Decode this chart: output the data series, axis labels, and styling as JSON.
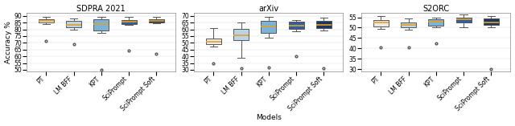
{
  "title_fontsize": 7,
  "label_fontsize": 6.5,
  "tick_fontsize": 5.5,
  "xlabel": "Models",
  "ylabel": "Accuracy %",
  "datasets": {
    "SDPRA 2021": {
      "ylim": [
        49,
        92
      ],
      "yticks": [
        50,
        55,
        60,
        65,
        70,
        75,
        80,
        85,
        90
      ],
      "models": [
        "PT",
        "LM BFF",
        "KPT",
        "SciPrompt",
        "SciPrompt Soft"
      ],
      "colors": [
        "#e8e8e8",
        "#b8d4e8",
        "#7ab3d9",
        "#2e5fa3",
        "#1a3665"
      ],
      "boxes": [
        {
          "q1": 85.0,
          "median": 86.2,
          "q3": 87.5,
          "whislo": 84.0,
          "whishi": 89.5,
          "fliers": [
            71.5
          ]
        },
        {
          "q1": 81.5,
          "median": 83.5,
          "q3": 86.5,
          "whislo": 80.0,
          "whishi": 88.0,
          "fliers": [
            69.0
          ]
        },
        {
          "q1": 79.0,
          "median": 84.0,
          "q3": 87.5,
          "whislo": 77.5,
          "whishi": 89.0,
          "fliers": [
            50.0
          ]
        },
        {
          "q1": 84.0,
          "median": 85.5,
          "q3": 87.0,
          "whislo": 83.0,
          "whishi": 89.5,
          "fliers": [
            64.5
          ]
        },
        {
          "q1": 85.0,
          "median": 86.0,
          "q3": 87.5,
          "whislo": 84.5,
          "whishi": 89.0,
          "fliers": [
            62.0
          ]
        }
      ]
    },
    "arXiv": {
      "ylim": [
        29,
        72
      ],
      "yticks": [
        30,
        35,
        40,
        45,
        50,
        55,
        60,
        65,
        70
      ],
      "models": [
        "PT",
        "LM BFF",
        "KPT",
        "SciPrompt",
        "SciPrompt Soft"
      ],
      "colors": [
        "#e8e8e8",
        "#b8d4e8",
        "#7ab3d9",
        "#2e5fa3",
        "#1a3665"
      ],
      "boxes": [
        {
          "q1": 49.0,
          "median": 51.0,
          "q3": 53.0,
          "whislo": 47.0,
          "whishi": 61.0,
          "fliers": [
            35.0
          ]
        },
        {
          "q1": 52.0,
          "median": 55.5,
          "q3": 60.5,
          "whislo": 39.0,
          "whishi": 65.0,
          "fliers": [
            31.0
          ]
        },
        {
          "q1": 57.5,
          "median": 62.0,
          "q3": 66.0,
          "whislo": 54.0,
          "whishi": 69.5,
          "fliers": [
            31.5
          ]
        },
        {
          "q1": 60.5,
          "median": 62.5,
          "q3": 65.5,
          "whislo": 58.5,
          "whishi": 67.0,
          "fliers": [
            40.0
          ]
        },
        {
          "q1": 61.0,
          "median": 63.5,
          "q3": 66.0,
          "whislo": 59.0,
          "whishi": 68.5,
          "fliers": [
            31.0
          ]
        }
      ]
    },
    "S2ORC": {
      "ylim": [
        29,
        57
      ],
      "yticks": [
        30,
        35,
        40,
        45,
        50,
        55
      ],
      "models": [
        "PT",
        "LM BFF",
        "KPT",
        "SciPrompt",
        "SciPrompt Soft"
      ],
      "colors": [
        "#e8e8e8",
        "#b8d4e8",
        "#7ab3d9",
        "#2e5fa3",
        "#1a3665"
      ],
      "boxes": [
        {
          "q1": 50.5,
          "median": 52.5,
          "q3": 53.5,
          "whislo": 49.5,
          "whishi": 55.5,
          "fliers": [
            40.5
          ]
        },
        {
          "q1": 50.0,
          "median": 51.5,
          "q3": 52.5,
          "whislo": 49.0,
          "whishi": 54.5,
          "fliers": [
            40.5
          ]
        },
        {
          "q1": 51.0,
          "median": 53.0,
          "q3": 54.0,
          "whislo": 50.0,
          "whishi": 55.0,
          "fliers": [
            42.5
          ]
        },
        {
          "q1": 52.5,
          "median": 54.0,
          "q3": 55.0,
          "whislo": 50.0,
          "whishi": 56.5,
          "fliers": []
        },
        {
          "q1": 51.5,
          "median": 52.5,
          "q3": 54.5,
          "whislo": 50.0,
          "whishi": 55.5,
          "fliers": [
            30.0
          ]
        }
      ]
    }
  },
  "median_color": "#e8a020",
  "whisker_color": "#555555",
  "box_edge_color": "#555555",
  "flier_color": "#555555",
  "background_color": "#ffffff",
  "fig_bg": "#ffffff"
}
